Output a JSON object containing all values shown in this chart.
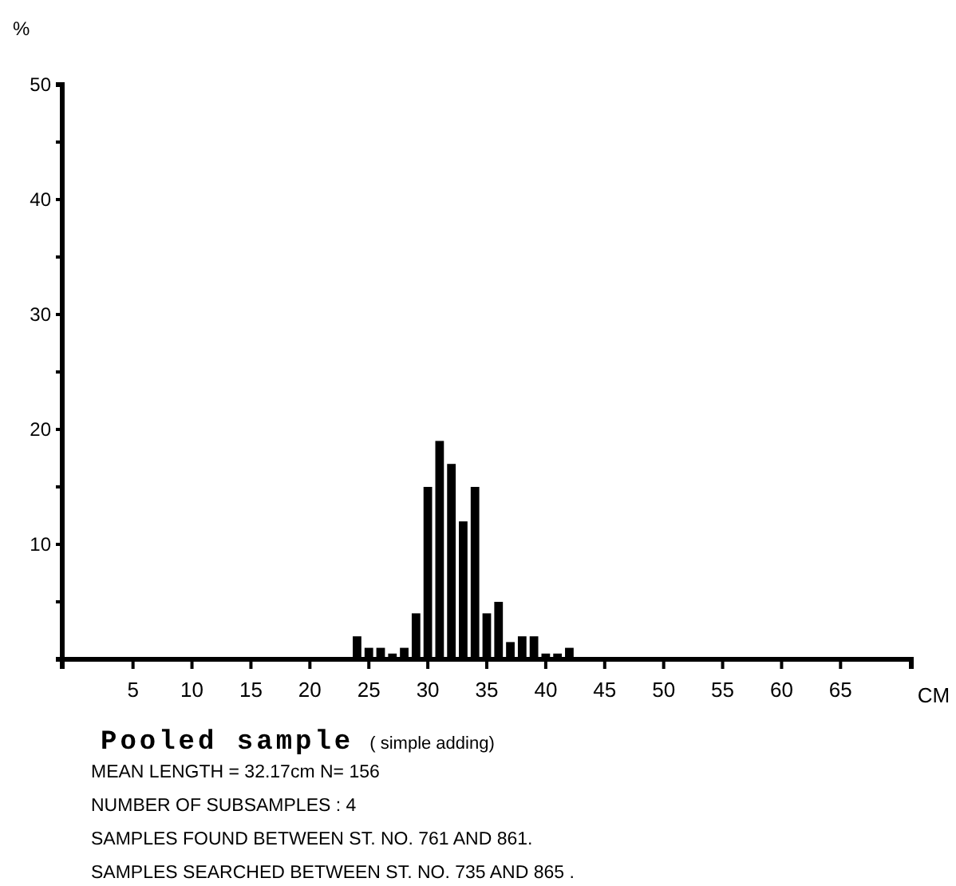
{
  "chart_data": {
    "type": "histogram",
    "title": "Pooled sample",
    "subtitle": "( simple adding)",
    "xlabel": "CM",
    "ylabel": "%",
    "bins": [
      22.5,
      23.5,
      24.5,
      25.5,
      26.5,
      27.5,
      28.5,
      29.5,
      30.5,
      31.5,
      32.5,
      33.5,
      34.5,
      35.5,
      36.5,
      37.5,
      38.5,
      39.5,
      40.5,
      41.5,
      42.5,
      43.5
    ],
    "values": [
      0,
      2,
      1,
      1,
      0.5,
      1,
      4,
      15,
      19,
      17,
      12,
      15,
      4,
      5,
      1.5,
      2,
      2,
      0.5,
      0.5,
      1,
      0
    ],
    "color": "#000000",
    "xlim": [
      -1,
      71
    ],
    "xticks": [
      5,
      10,
      15,
      20,
      25,
      30,
      35,
      40,
      45,
      50,
      55,
      60,
      65
    ],
    "ylim": [
      0,
      50
    ],
    "yticks": [
      {
        "value": 5,
        "label": null
      },
      10,
      {
        "value": 15,
        "label": null
      },
      20,
      {
        "value": 25,
        "label": null
      },
      30,
      {
        "value": 35,
        "label": null
      },
      40,
      {
        "value": 45,
        "label": null
      },
      50
    ],
    "grid": false,
    "annotations": [
      "MEAN LENGTH = 32.17cm  N=  156",
      "NUMBER OF SUBSAMPLES :  4",
      "SAMPLES FOUND BETWEEN ST. NO. 761 AND  861.",
      "SAMPLES SEARCHED BETWEEN ST. NO. 735 AND  865 ."
    ]
  }
}
